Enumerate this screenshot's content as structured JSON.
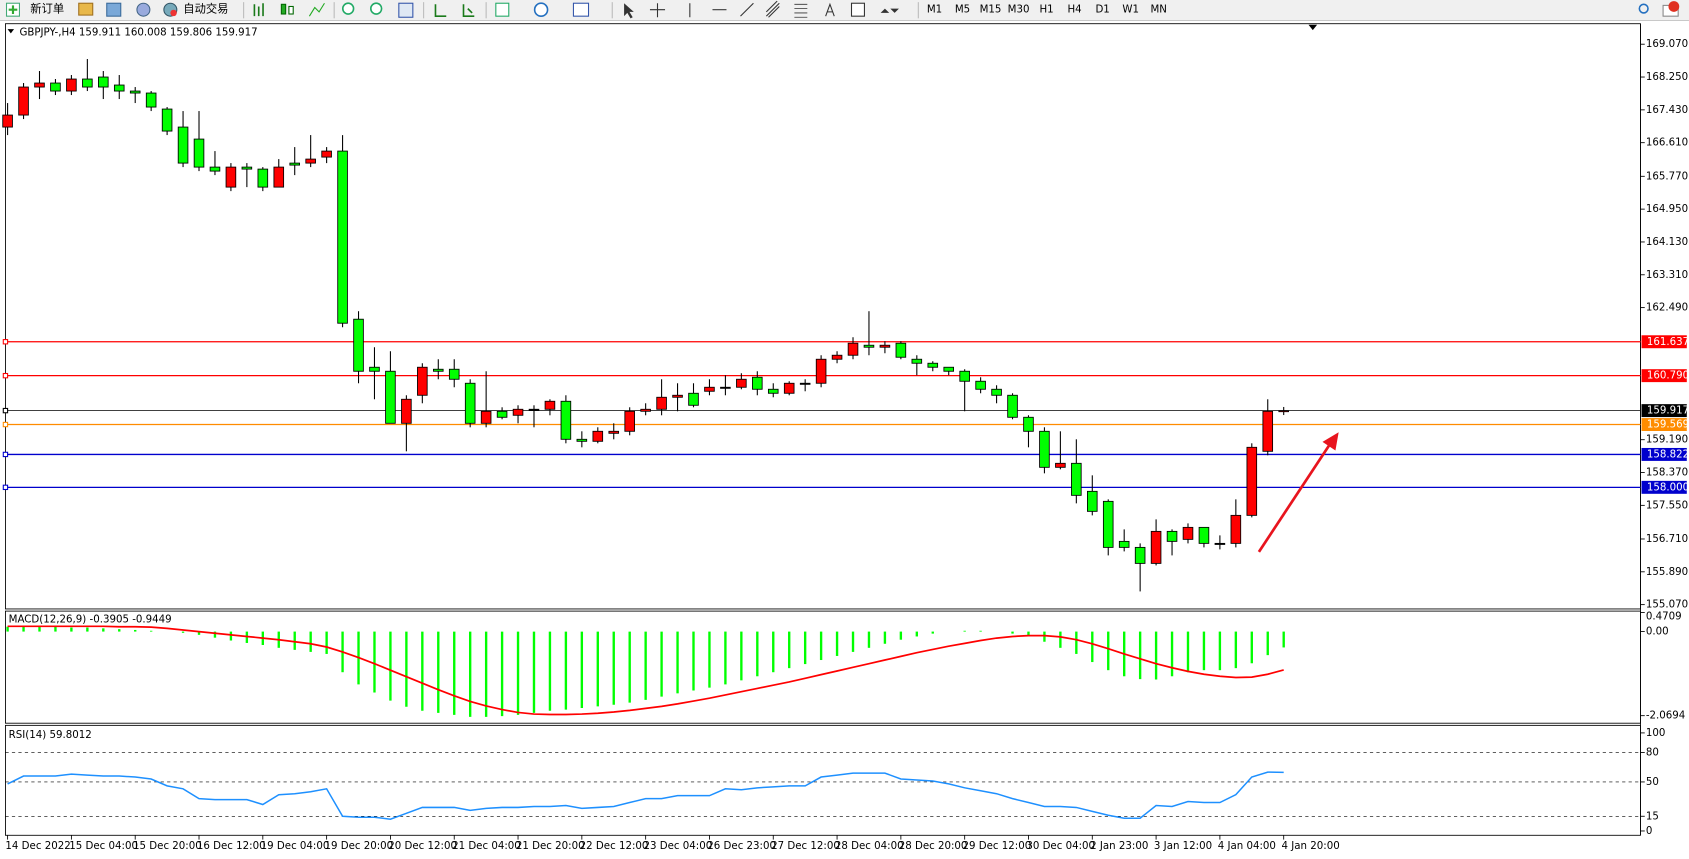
{
  "toolbar": {
    "new_order": "新订单",
    "auto_trading": "自动交易",
    "timeframes": [
      "M1",
      "M5",
      "M15",
      "M30",
      "H1",
      "H4",
      "D1",
      "W1",
      "MN"
    ]
  },
  "chart_data": [
    {
      "type": "candlestick",
      "title": "GBPJPY-,H4  159.911 160.008 159.806 159.917",
      "categories": [
        "14 Dec 2022",
        null,
        null,
        null,
        "15 Dec 04:00",
        null,
        null,
        null,
        "15 Dec 20:00",
        null,
        null,
        null,
        "16 Dec 12:00",
        null,
        null,
        null,
        "19 Dec 04:00",
        null,
        null,
        null,
        "19 Dec 20:00",
        null,
        null,
        null,
        "20 Dec 12:00",
        null,
        null,
        null,
        "21 Dec 04:00",
        null,
        null,
        null,
        "21 Dec 20:00",
        null,
        null,
        null,
        "22 Dec 12:00",
        null,
        null,
        null,
        "23 Dec 04:00",
        null,
        null,
        null,
        "26 Dec 23:00",
        null,
        null,
        null,
        "27 Dec 12:00",
        null,
        null,
        null,
        "28 Dec 04:00",
        null,
        null,
        null,
        "28 Dec 20:00",
        null,
        null,
        null,
        "29 Dec 12:00",
        null,
        null,
        null,
        "30 Dec 04:00",
        null,
        null,
        null,
        "2 Jan 23:00",
        null,
        null,
        null,
        "3 Jan 12:00",
        null,
        null,
        null,
        "4 Jan 04:00",
        null,
        null,
        null,
        "4 Jan 20:00"
      ],
      "open": [
        167.0,
        167.3,
        168.0,
        168.1,
        167.9,
        168.2,
        168.25,
        168.05,
        167.9,
        167.85,
        167.45,
        167.0,
        166.7,
        166.0,
        165.5,
        166.0,
        165.95,
        165.5,
        166.1,
        166.1,
        166.25,
        166.4,
        162.2,
        161.0,
        160.9,
        159.6,
        160.3,
        160.95,
        160.95,
        160.6,
        159.6,
        159.9,
        159.8,
        159.95,
        159.95,
        160.15,
        159.2,
        159.15,
        159.35,
        159.4,
        159.9,
        159.95,
        160.25,
        160.35,
        160.4,
        160.5,
        160.5,
        160.75,
        160.45,
        160.35,
        160.6,
        160.6,
        161.2,
        161.3,
        161.55,
        161.5,
        161.6,
        161.2,
        161.1,
        161.0,
        160.9,
        160.65,
        160.45,
        160.3,
        159.75,
        159.4,
        158.5,
        158.6,
        157.9,
        157.65,
        156.65,
        156.5,
        156.1,
        156.9,
        156.7,
        157.0,
        156.6,
        156.6,
        157.3,
        158.9,
        159.911
      ],
      "high": [
        167.6,
        168.1,
        168.4,
        168.2,
        168.3,
        168.7,
        168.4,
        168.3,
        168.0,
        167.9,
        167.5,
        167.4,
        167.4,
        166.4,
        166.1,
        166.1,
        166.0,
        166.2,
        166.5,
        166.8,
        166.5,
        166.8,
        162.4,
        161.5,
        161.4,
        160.3,
        161.1,
        161.2,
        161.2,
        160.7,
        160.9,
        160.0,
        160.05,
        160.05,
        160.2,
        160.3,
        159.4,
        159.5,
        159.6,
        160.0,
        160.1,
        160.7,
        160.6,
        160.6,
        160.7,
        160.8,
        160.85,
        160.9,
        160.6,
        160.65,
        160.7,
        161.3,
        161.4,
        161.75,
        162.4,
        161.65,
        161.65,
        161.3,
        161.15,
        161.0,
        160.95,
        160.75,
        160.55,
        160.35,
        159.8,
        159.5,
        159.4,
        159.2,
        158.3,
        157.7,
        156.95,
        156.6,
        157.2,
        156.95,
        157.1,
        157.0,
        156.8,
        157.7,
        159.1,
        160.2,
        160.008
      ],
      "low": [
        166.8,
        167.2,
        167.7,
        167.8,
        167.8,
        167.9,
        167.7,
        167.7,
        167.6,
        167.4,
        166.8,
        166.0,
        165.9,
        165.8,
        165.4,
        165.5,
        165.4,
        165.5,
        165.8,
        166.0,
        166.1,
        162.0,
        160.6,
        160.2,
        159.6,
        158.9,
        160.1,
        160.7,
        160.5,
        159.5,
        159.5,
        159.7,
        159.6,
        159.5,
        159.8,
        159.1,
        159.0,
        159.1,
        159.2,
        159.3,
        159.8,
        159.8,
        159.9,
        160.0,
        160.3,
        160.3,
        160.45,
        160.3,
        160.25,
        160.3,
        160.4,
        160.5,
        161.1,
        161.2,
        161.3,
        161.35,
        161.2,
        160.8,
        160.9,
        160.8,
        159.9,
        160.35,
        160.1,
        159.7,
        159.0,
        158.35,
        158.45,
        157.6,
        157.3,
        156.3,
        156.4,
        155.4,
        156.05,
        156.3,
        156.6,
        156.5,
        156.45,
        156.5,
        157.25,
        158.8,
        159.806
      ],
      "close": [
        167.3,
        168.0,
        168.1,
        167.9,
        168.2,
        168.0,
        168.0,
        167.9,
        167.85,
        167.5,
        166.9,
        166.1,
        166.0,
        165.9,
        166.0,
        165.95,
        165.5,
        166.0,
        166.05,
        166.2,
        166.4,
        162.1,
        160.9,
        160.9,
        159.6,
        160.2,
        161.0,
        160.9,
        160.7,
        159.6,
        159.9,
        159.75,
        159.95,
        159.95,
        160.15,
        159.2,
        159.15,
        159.4,
        159.4,
        159.9,
        159.95,
        160.25,
        160.3,
        160.05,
        160.5,
        160.5,
        160.7,
        160.45,
        160.35,
        160.6,
        160.6,
        161.2,
        161.3,
        161.6,
        161.5,
        161.55,
        161.25,
        161.1,
        161.0,
        160.9,
        160.65,
        160.45,
        160.3,
        159.75,
        159.4,
        158.5,
        158.6,
        157.8,
        157.4,
        156.5,
        156.5,
        156.1,
        156.9,
        156.65,
        157.0,
        156.6,
        156.6,
        157.3,
        159.0,
        159.9,
        159.917
      ],
      "up_color": "#ff0000",
      "down_color": "#00ff00",
      "ylim": [
        154.962,
        169.582
      ],
      "yticks": [
        {
          "value": 169.07,
          "label": "169.070"
        },
        {
          "value": 168.25,
          "label": "168.250"
        },
        {
          "value": 167.43,
          "label": "167.430"
        },
        {
          "value": 166.61,
          "label": "166.610"
        },
        {
          "value": 165.77,
          "label": "165.770"
        },
        {
          "value": 164.95,
          "label": "164.950"
        },
        {
          "value": 164.13,
          "label": "164.130"
        },
        {
          "value": 163.31,
          "label": "163.310"
        },
        {
          "value": 162.49,
          "label": "162.490"
        },
        {
          "value": 159.19,
          "label": "159.190"
        },
        {
          "value": 158.37,
          "label": "158.370"
        },
        {
          "value": 157.55,
          "label": "157.550"
        },
        {
          "value": 156.71,
          "label": "156.710"
        },
        {
          "value": 155.89,
          "label": "155.890"
        },
        {
          "value": 155.07,
          "label": "155.070"
        }
      ],
      "levels": [
        {
          "value": 161.637,
          "color": "#ff0000"
        },
        {
          "value": {
            "value": 160.79,
            "label": "160.790"
          },
          "color": "#ff0000"
        },
        {
          "value": 159.917,
          "color": "#000000"
        },
        {
          "value": 159.569,
          "color": "#ff8c00"
        },
        {
          "value": 158.822,
          "color": "#0000cd"
        },
        {
          "value": {
            "value": 158,
            "label": "158.000"
          },
          "color": "#0000cd"
        }
      ]
    },
    {
      "type": "macd",
      "title": "MACD(12,26,9) -0.3905 -0.9449",
      "series": [
        {
          "type": "bar",
          "color": "#00ff00",
          "values": [
            0.12,
            0.12,
            0.12,
            0.12,
            0.1,
            0.1,
            0.08,
            0.06,
            0.04,
            0.02,
            0.0,
            -0.03,
            -0.08,
            -0.15,
            -0.22,
            -0.28,
            -0.33,
            -0.4,
            -0.45,
            -0.5,
            -0.55,
            -1.0,
            -1.3,
            -1.5,
            -1.7,
            -1.85,
            -1.95,
            -2.0,
            -2.05,
            -2.1,
            -2.1,
            -2.08,
            -2.05,
            -2.0,
            -1.95,
            -1.92,
            -1.88,
            -1.84,
            -1.8,
            -1.75,
            -1.68,
            -1.6,
            -1.52,
            -1.45,
            -1.38,
            -1.3,
            -1.2,
            -1.1,
            -1.0,
            -0.9,
            -0.8,
            -0.7,
            -0.6,
            -0.5,
            -0.4,
            -0.3,
            -0.2,
            -0.12,
            -0.05,
            0.0,
            0.02,
            0.02,
            0.0,
            -0.05,
            -0.12,
            -0.25,
            -0.4,
            -0.55,
            -0.75,
            -0.95,
            -1.1,
            -1.17,
            -1.18,
            -1.1,
            -1.0,
            -0.95,
            -0.95,
            -0.9,
            -0.78,
            -0.58,
            -0.3905
          ]
        },
        {
          "type": "line",
          "color": "#ff0000",
          "values": [
            0.13,
            0.13,
            0.13,
            0.13,
            0.13,
            0.13,
            0.13,
            0.12,
            0.12,
            0.11,
            0.08,
            0.04,
            0.0,
            -0.04,
            -0.08,
            -0.12,
            -0.16,
            -0.2,
            -0.25,
            -0.3,
            -0.38,
            -0.5,
            -0.64,
            -0.79,
            -0.95,
            -1.11,
            -1.27,
            -1.43,
            -1.58,
            -1.72,
            -1.83,
            -1.92,
            -1.99,
            -2.03,
            -2.04,
            -2.04,
            -2.03,
            -2.01,
            -1.98,
            -1.94,
            -1.89,
            -1.84,
            -1.78,
            -1.71,
            -1.64,
            -1.56,
            -1.48,
            -1.4,
            -1.32,
            -1.24,
            -1.15,
            -1.06,
            -0.97,
            -0.88,
            -0.79,
            -0.7,
            -0.61,
            -0.52,
            -0.44,
            -0.36,
            -0.29,
            -0.22,
            -0.16,
            -0.12,
            -0.1,
            -0.1,
            -0.13,
            -0.2,
            -0.3,
            -0.42,
            -0.55,
            -0.67,
            -0.79,
            -0.89,
            -0.98,
            -1.05,
            -1.1,
            -1.13,
            -1.12,
            -1.05,
            -0.9449
          ]
        }
      ],
      "ylim": [
        -2.255,
        0.504
      ],
      "yticks": [
        0.4709,
        {
          "value": 0,
          "label": "0.00"
        },
        -2.0694
      ]
    },
    {
      "type": "line",
      "title": "RSI(14) 59.8012",
      "series": [
        {
          "color": "#1e90ff",
          "values": [
            48,
            56,
            56,
            56,
            58,
            57,
            56,
            56,
            55,
            53,
            46,
            43,
            33,
            32,
            32,
            32,
            27,
            37,
            38,
            40,
            43,
            15,
            14,
            14,
            12,
            18,
            24,
            24,
            24,
            21,
            23,
            24,
            24,
            25,
            25,
            26,
            23,
            24,
            25,
            29,
            33,
            33,
            36,
            36,
            36,
            43,
            42,
            44,
            45,
            46,
            46,
            55,
            57,
            59,
            59,
            59,
            53,
            52,
            51,
            48,
            44,
            41,
            38,
            33,
            29,
            25,
            25,
            24,
            20,
            16,
            13,
            13,
            26,
            25,
            30,
            29,
            29,
            37,
            55,
            60,
            59.8012
          ]
        }
      ],
      "ylim": [
        -4.4,
        107.7
      ],
      "yticks": [
        100,
        80,
        50,
        15,
        0
      ]
    }
  ]
}
